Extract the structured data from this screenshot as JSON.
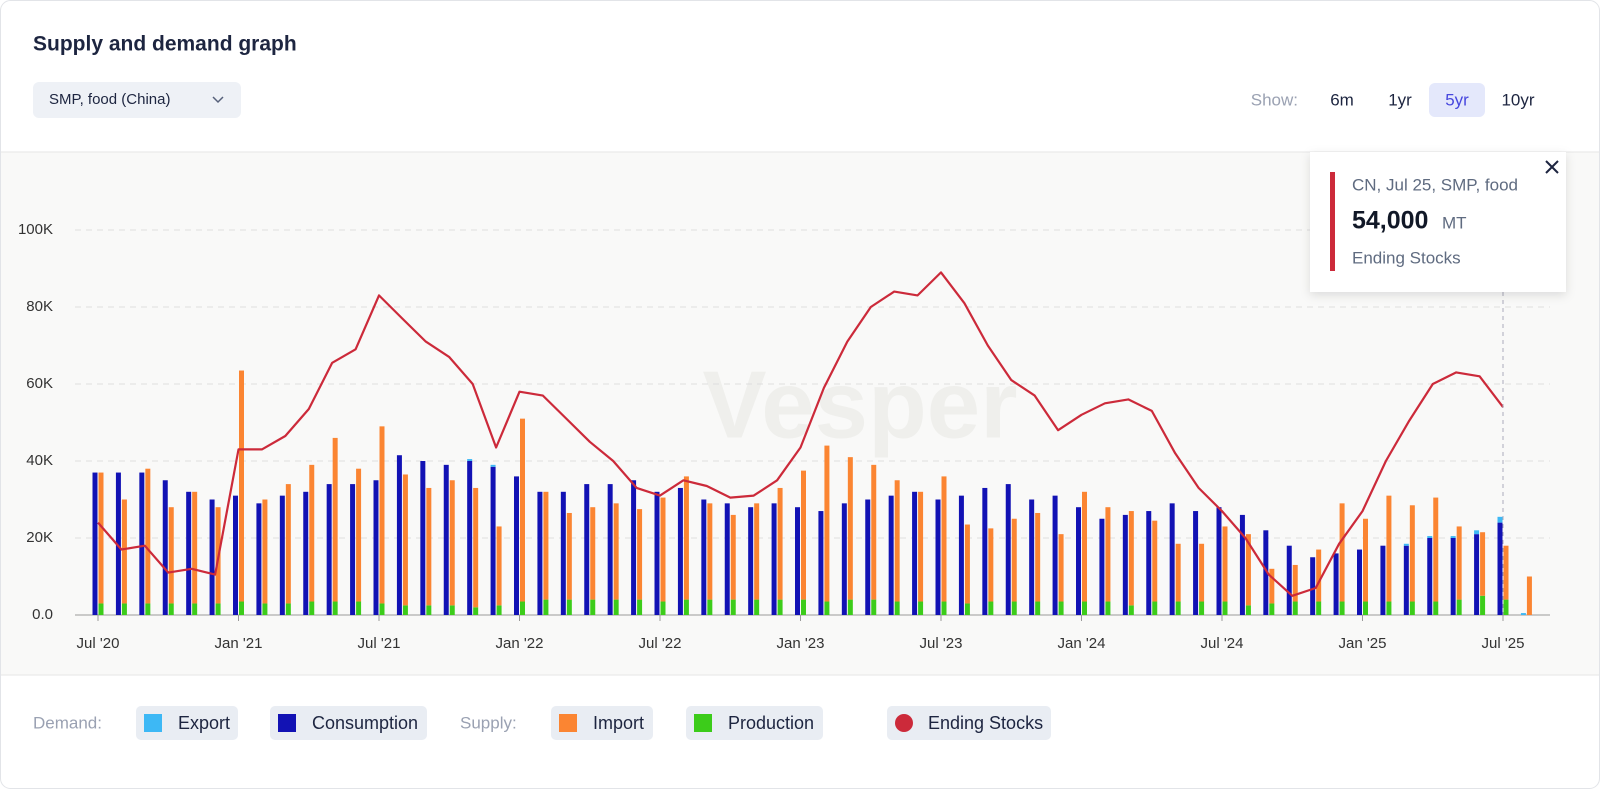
{
  "header": {
    "title": "Supply and demand graph",
    "dropdown": "SMP, food (China)",
    "show_label": "Show:",
    "ranges": [
      "6m",
      "1yr",
      "5yr",
      "10yr"
    ],
    "active_range": "5yr"
  },
  "chart_data": {
    "type": "bar",
    "watermark": "Vesper",
    "categories": [
      "Jul '20",
      null,
      null,
      null,
      null,
      null,
      "Jan '21",
      null,
      null,
      null,
      null,
      null,
      "Jul '21",
      null,
      null,
      null,
      null,
      null,
      "Jan '22",
      null,
      null,
      null,
      null,
      null,
      "Jul '22",
      null,
      null,
      null,
      null,
      null,
      "Jan '23",
      null,
      null,
      null,
      null,
      null,
      "Jul '23",
      null,
      null,
      null,
      null,
      null,
      "Jan '24",
      null,
      null,
      null,
      null,
      null,
      "Jul '24",
      null,
      null,
      null,
      null,
      null,
      "Jan '25",
      null,
      null,
      null,
      null,
      null,
      "Jul '25",
      null
    ],
    "ylim": [
      0,
      110000
    ],
    "yticks": [
      {
        "value": 0,
        "label": "0.0"
      },
      {
        "value": 20000,
        "label": "20K"
      },
      {
        "value": 40000,
        "label": "40K"
      },
      {
        "value": 60000,
        "label": "60K"
      },
      {
        "value": 80000,
        "label": "80K"
      },
      {
        "value": 100000,
        "label": "100K"
      }
    ],
    "grid": true,
    "series": [
      {
        "name": "Consumption",
        "group": "demand",
        "color": "#1212b4",
        "values": [
          37000,
          37000,
          37000,
          35000,
          32000,
          30000,
          31000,
          29000,
          31000,
          32000,
          34000,
          34000,
          35000,
          41500,
          40000,
          39000,
          40000,
          38500,
          36000,
          32000,
          32000,
          34000,
          34000,
          35000,
          32000,
          33000,
          30000,
          29000,
          28000,
          29000,
          28000,
          27000,
          29000,
          30000,
          31000,
          32000,
          30000,
          31000,
          33000,
          34000,
          30000,
          31000,
          28000,
          25000,
          26000,
          27000,
          29000,
          27000,
          28000,
          26000,
          22000,
          18000,
          15000,
          16000,
          17000,
          18000,
          18000,
          20000,
          20000,
          21000,
          24000,
          0
        ]
      },
      {
        "name": "Export",
        "group": "demand",
        "color": "#3db8f5",
        "values": [
          0,
          0,
          0,
          0,
          0,
          0,
          0,
          0,
          0,
          0,
          0,
          0,
          0,
          0,
          0,
          0,
          500,
          500,
          0,
          0,
          0,
          0,
          0,
          0,
          0,
          0,
          0,
          0,
          0,
          0,
          0,
          0,
          0,
          0,
          0,
          0,
          0,
          0,
          0,
          0,
          0,
          0,
          0,
          0,
          0,
          0,
          0,
          0,
          0,
          0,
          0,
          0,
          0,
          0,
          0,
          0,
          500,
          500,
          500,
          1000,
          1500,
          500
        ]
      },
      {
        "name": "Production",
        "group": "supply",
        "color": "#3ccc1a",
        "values": [
          3000,
          3000,
          3000,
          3000,
          3000,
          3000,
          3500,
          3000,
          3000,
          3500,
          3500,
          3500,
          3000,
          2500,
          2500,
          2500,
          2000,
          2500,
          3500,
          4000,
          4000,
          4000,
          4000,
          4000,
          3500,
          4000,
          4000,
          4000,
          4000,
          4000,
          4000,
          3500,
          4000,
          4000,
          3500,
          3500,
          3500,
          3000,
          3500,
          3500,
          3500,
          3500,
          3500,
          3500,
          2500,
          3500,
          3500,
          3500,
          3500,
          2500,
          3000,
          3500,
          3500,
          3500,
          3500,
          3500,
          3500,
          3500,
          4000,
          5000,
          4000,
          0
        ]
      },
      {
        "name": "Import",
        "group": "supply",
        "color": "#fb8532",
        "values": [
          34000,
          27000,
          35000,
          25000,
          29000,
          25000,
          60000,
          27000,
          31000,
          35500,
          42500,
          34500,
          46000,
          34000,
          30500,
          32500,
          31000,
          20500,
          47500,
          28000,
          22500,
          24000,
          25000,
          23500,
          27000,
          32000,
          25000,
          22000,
          25000,
          29000,
          33500,
          40500,
          37000,
          35000,
          31500,
          28500,
          32500,
          20500,
          19000,
          21500,
          23000,
          17500,
          28500,
          24500,
          24500,
          21000,
          15000,
          15000,
          19500,
          18500,
          9000,
          9500,
          13500,
          25500,
          21500,
          27500,
          25000,
          27000,
          19000,
          16500,
          14000,
          10000
        ]
      },
      {
        "name": "Ending Stocks",
        "type": "line",
        "color": "#cc2a3a",
        "values": [
          24000,
          17000,
          18000,
          11000,
          12000,
          10500,
          43000,
          43000,
          46500,
          53500,
          65500,
          69000,
          83000,
          77000,
          71000,
          67000,
          60000,
          43500,
          58000,
          57000,
          51000,
          45000,
          40000,
          33000,
          31000,
          35000,
          33500,
          30500,
          31000,
          35000,
          43500,
          59000,
          71000,
          80000,
          84000,
          83000,
          89000,
          81000,
          70000,
          61000,
          57000,
          48000,
          52000,
          55000,
          56000,
          53000,
          42000,
          33000,
          27000,
          20000,
          10500,
          5000,
          7000,
          18500,
          27000,
          40000,
          50500,
          60000,
          63000,
          62000,
          54000,
          null
        ]
      }
    ]
  },
  "tooltip": {
    "title": "CN, Jul 25, SMP, food",
    "value": "54,000",
    "unit": "MT",
    "series": "Ending Stocks"
  },
  "legend": {
    "demand_label": "Demand:",
    "supply_label": "Supply:"
  }
}
